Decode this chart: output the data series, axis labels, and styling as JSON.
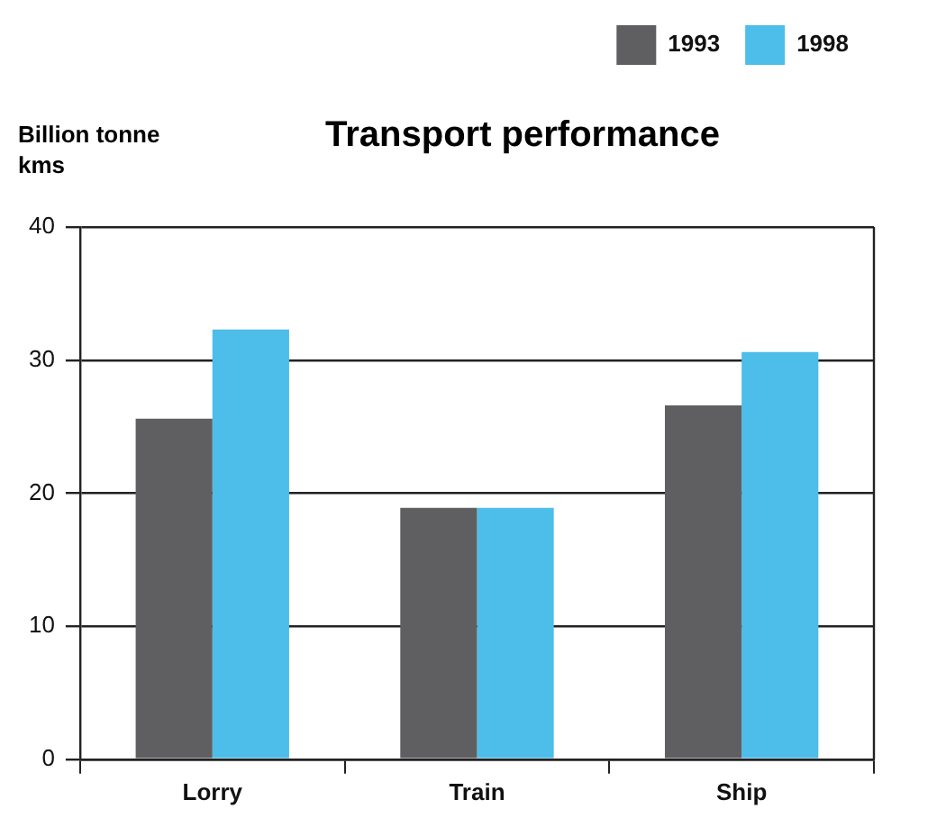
{
  "chart_data": {
    "type": "bar",
    "title": "Transport performance",
    "ylabel": "Billion tonne kms",
    "categories": [
      "Lorry",
      "Train",
      "Ship"
    ],
    "series": [
      {
        "name": "1993",
        "color": "#5f5f62",
        "values": [
          25.6,
          18.9,
          26.6
        ]
      },
      {
        "name": "1998",
        "color": "#4dbde9",
        "values": [
          32.3,
          18.9,
          30.6
        ]
      }
    ],
    "ylim": [
      0,
      40
    ],
    "yticks": [
      0,
      10,
      20,
      30,
      40
    ],
    "grid": "y",
    "legend": "top right"
  }
}
